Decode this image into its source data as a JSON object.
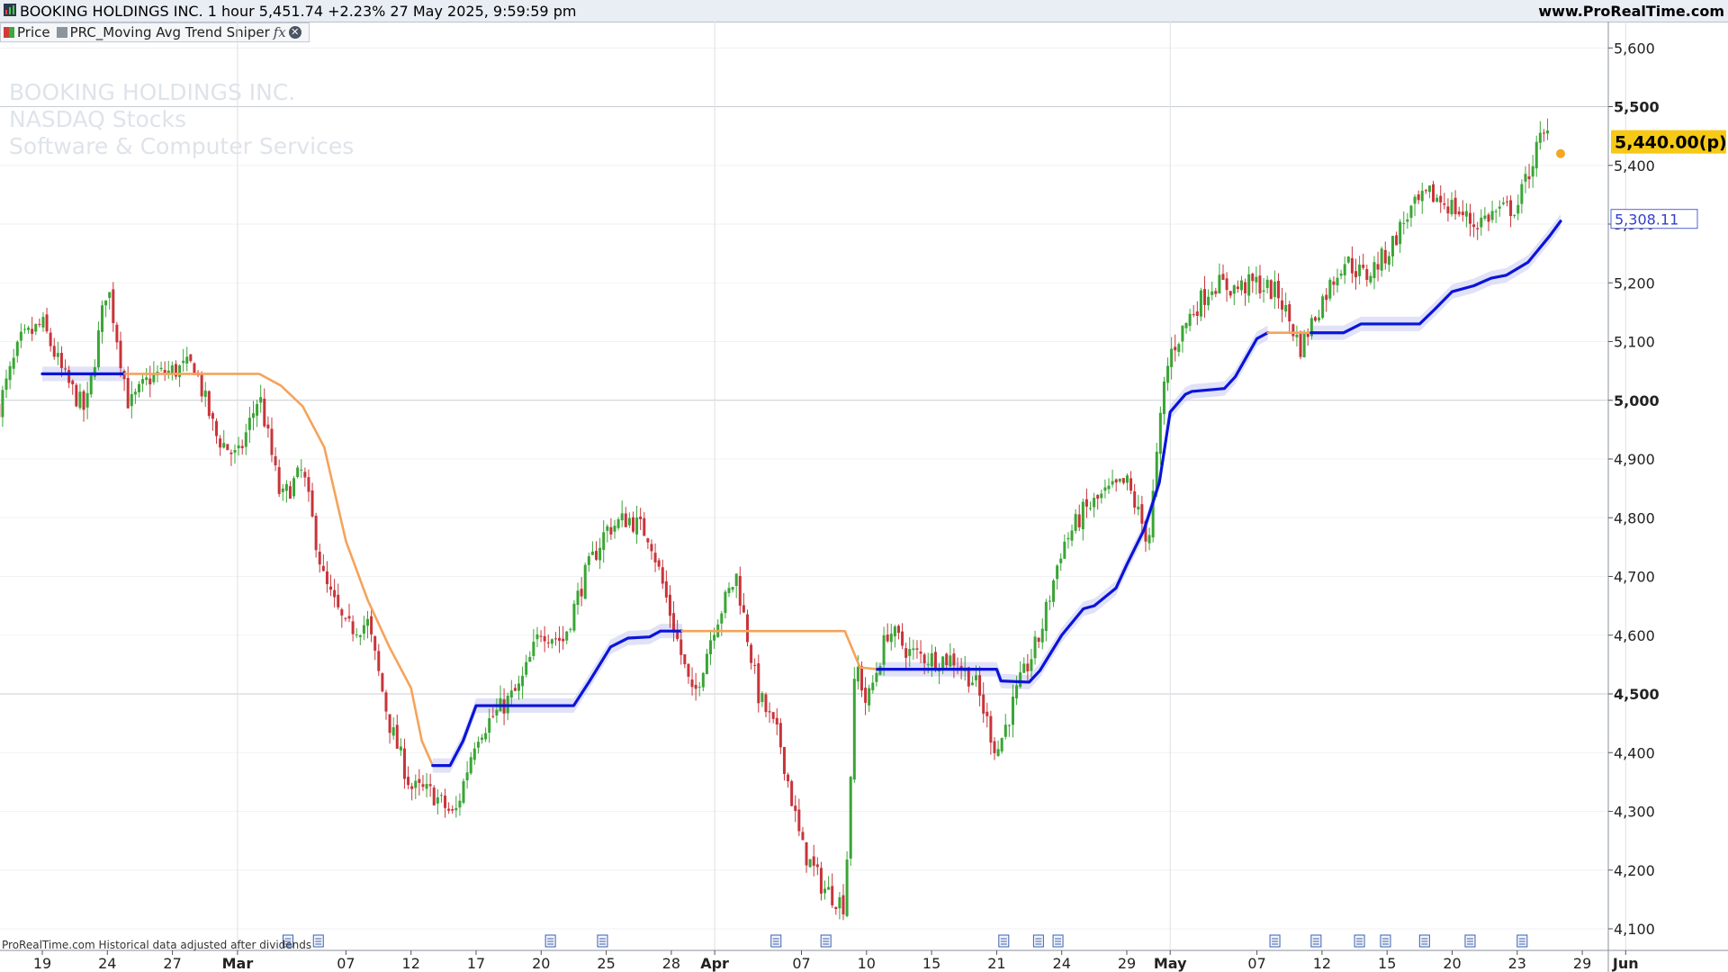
{
  "header": {
    "title": "BOOKING HOLDINGS INC. 1 hour 5,451.74 +2.23% 27 May 2025, 9:59:59 pm",
    "site": "www.ProRealTime.com"
  },
  "legend": {
    "price_label": "Price",
    "indicator_label": "PRC_Moving Avg Trend Sniper",
    "fx_label": "fx"
  },
  "watermark": {
    "line1": "BOOKING HOLDINGS INC.",
    "line2": "NASDAQ Stocks",
    "line3": "Software & Computer Services"
  },
  "footer": {
    "note": "ProRealTime.com Historical data adjusted after dividends"
  },
  "colors": {
    "up": "#3aa535",
    "down": "#c8343a",
    "trend_up": "#0a14d8",
    "trend_flat": "#f5a35a",
    "band": "#c8c9f2",
    "price_badge": "#f6c916"
  },
  "chart_data": {
    "type": "candlestick",
    "title": "BOOKING HOLDINGS INC.",
    "ylim": [
      4050,
      5625
    ],
    "y_ticks": [
      4100,
      4200,
      4300,
      4400,
      4500,
      4600,
      4700,
      4800,
      4900,
      5000,
      5100,
      5200,
      5300,
      5400,
      5500,
      5600
    ],
    "y_tick_labels": [
      "4,100",
      "4,200",
      "4,300",
      "4,400",
      "4,500",
      "4,600",
      "4,700",
      "4,800",
      "4,900",
      "5,000",
      "5,100",
      "5,200",
      "5,300",
      "5,400",
      "5,500",
      "5,600"
    ],
    "y_bold_ticks": [
      4500,
      5000,
      5500
    ],
    "x_ticks": [
      {
        "label": "19",
        "pos": 0.0
      },
      {
        "label": "24",
        "pos": 3.0
      },
      {
        "label": "27",
        "pos": 6.0
      },
      {
        "label": "Mar",
        "pos": 9.0,
        "bold": true
      },
      {
        "label": "07",
        "pos": 14.0
      },
      {
        "label": "12",
        "pos": 17.0
      },
      {
        "label": "17",
        "pos": 20.0
      },
      {
        "label": "20",
        "pos": 23.0
      },
      {
        "label": "25",
        "pos": 26.0
      },
      {
        "label": "28",
        "pos": 29.0
      },
      {
        "label": "Apr",
        "pos": 31.0,
        "bold": true
      },
      {
        "label": "07",
        "pos": 35.0
      },
      {
        "label": "10",
        "pos": 38.0
      },
      {
        "label": "15",
        "pos": 41.0
      },
      {
        "label": "21",
        "pos": 44.0
      },
      {
        "label": "24",
        "pos": 47.0
      },
      {
        "label": "29",
        "pos": 50.0
      },
      {
        "label": "May",
        "pos": 52.0,
        "bold": true
      },
      {
        "label": "07",
        "pos": 56.0
      },
      {
        "label": "12",
        "pos": 59.0
      },
      {
        "label": "15",
        "pos": 62.0
      },
      {
        "label": "20",
        "pos": 65.0
      },
      {
        "label": "23",
        "pos": 68.0
      },
      {
        "label": "29",
        "pos": 71.0
      },
      {
        "label": "Jun",
        "pos": 73.0,
        "bold": true
      }
    ],
    "x_range": [
      -2,
      75.5
    ],
    "price_path": [
      [
        -2,
        4990
      ],
      [
        -1,
        5100
      ],
      [
        0,
        5130
      ],
      [
        1,
        5040
      ],
      [
        2,
        4980
      ],
      [
        3,
        5200
      ],
      [
        4,
        4990
      ],
      [
        5,
        5040
      ],
      [
        6,
        5050
      ],
      [
        7,
        5060
      ],
      [
        8,
        4940
      ],
      [
        9,
        4900
      ],
      [
        10,
        5010
      ],
      [
        11,
        4830
      ],
      [
        12,
        4880
      ],
      [
        13,
        4690
      ],
      [
        14,
        4610
      ],
      [
        15,
        4620
      ],
      [
        16,
        4450
      ],
      [
        17,
        4340
      ],
      [
        18,
        4330
      ],
      [
        19,
        4290
      ],
      [
        20,
        4430
      ],
      [
        21,
        4470
      ],
      [
        22,
        4510
      ],
      [
        23,
        4610
      ],
      [
        24,
        4590
      ],
      [
        25,
        4700
      ],
      [
        26,
        4780
      ],
      [
        27,
        4800
      ],
      [
        28,
        4770
      ],
      [
        29,
        4630
      ],
      [
        30,
        4490
      ],
      [
        31,
        4620
      ],
      [
        32,
        4700
      ],
      [
        33,
        4500
      ],
      [
        34,
        4420
      ],
      [
        35,
        4240
      ],
      [
        36,
        4170
      ],
      [
        37,
        4140
      ],
      [
        37.5,
        4560
      ],
      [
        38,
        4480
      ],
      [
        39,
        4610
      ],
      [
        40,
        4570
      ],
      [
        41,
        4560
      ],
      [
        42,
        4560
      ],
      [
        43,
        4520
      ],
      [
        44,
        4400
      ],
      [
        45,
        4510
      ],
      [
        46,
        4600
      ],
      [
        47,
        4750
      ],
      [
        48,
        4810
      ],
      [
        49,
        4840
      ],
      [
        50,
        4860
      ],
      [
        51,
        4760
      ],
      [
        51.7,
        5020
      ],
      [
        52,
        5080
      ],
      [
        53,
        5150
      ],
      [
        54,
        5200
      ],
      [
        55,
        5190
      ],
      [
        56,
        5200
      ],
      [
        57,
        5180
      ],
      [
        58,
        5090
      ],
      [
        59,
        5170
      ],
      [
        60,
        5240
      ],
      [
        61,
        5210
      ],
      [
        62,
        5250
      ],
      [
        63,
        5320
      ],
      [
        64,
        5350
      ],
      [
        65,
        5330
      ],
      [
        66,
        5300
      ],
      [
        67,
        5320
      ],
      [
        68,
        5330
      ],
      [
        69,
        5440
      ],
      [
        69.5,
        5455
      ]
    ],
    "trend_segments": [
      {
        "trend": "up",
        "points": [
          [
            0,
            5045
          ],
          [
            3.8,
            5045
          ]
        ]
      },
      {
        "trend": "flat",
        "points": [
          [
            3.8,
            5045
          ],
          [
            10,
            5045
          ],
          [
            11,
            5025
          ],
          [
            12,
            4990
          ],
          [
            13,
            4920
          ],
          [
            14,
            4760
          ],
          [
            15,
            4660
          ],
          [
            16,
            4580
          ],
          [
            17,
            4510
          ],
          [
            17.5,
            4420
          ],
          [
            18,
            4378
          ]
        ]
      },
      {
        "trend": "up",
        "points": [
          [
            18,
            4378
          ],
          [
            18.8,
            4378
          ],
          [
            19.4,
            4420
          ],
          [
            20,
            4480
          ],
          [
            24.5,
            4480
          ],
          [
            25.2,
            4520
          ],
          [
            26.2,
            4580
          ],
          [
            27,
            4595
          ],
          [
            28,
            4597
          ],
          [
            28.5,
            4607
          ],
          [
            29.5,
            4607
          ]
        ]
      },
      {
        "trend": "flat",
        "points": [
          [
            29.5,
            4607
          ],
          [
            37,
            4607
          ],
          [
            37.7,
            4545
          ],
          [
            38.5,
            4542
          ]
        ]
      },
      {
        "trend": "up",
        "points": [
          [
            38.5,
            4542
          ],
          [
            44,
            4542
          ],
          [
            44.2,
            4522
          ],
          [
            45.5,
            4520
          ],
          [
            46,
            4540
          ],
          [
            47,
            4600
          ],
          [
            48,
            4645
          ],
          [
            48.5,
            4650
          ],
          [
            49.5,
            4680
          ],
          [
            50,
            4720
          ],
          [
            50.8,
            4780
          ],
          [
            51.5,
            4860
          ],
          [
            52,
            4980
          ],
          [
            52.7,
            5010
          ],
          [
            53,
            5015
          ],
          [
            54.5,
            5020
          ],
          [
            55,
            5040
          ],
          [
            56,
            5105
          ],
          [
            56.5,
            5115
          ]
        ]
      },
      {
        "trend": "flat",
        "points": [
          [
            56.5,
            5115
          ],
          [
            58.5,
            5115
          ]
        ]
      },
      {
        "trend": "up",
        "points": [
          [
            58.5,
            5115
          ],
          [
            60,
            5115
          ],
          [
            60.8,
            5130
          ],
          [
            63.5,
            5130
          ],
          [
            64.2,
            5155
          ],
          [
            65,
            5185
          ],
          [
            66,
            5195
          ],
          [
            66.8,
            5208
          ],
          [
            67.5,
            5213
          ],
          [
            68.5,
            5235
          ],
          [
            69.5,
            5280
          ],
          [
            70,
            5305
          ]
        ]
      }
    ],
    "series_label": "5,308.11",
    "series_value": 5308.11,
    "last_price_label": "5,440.00(p)",
    "last_price_value": 5440,
    "last_marker": [
      70,
      5420
    ],
    "grid": true
  }
}
